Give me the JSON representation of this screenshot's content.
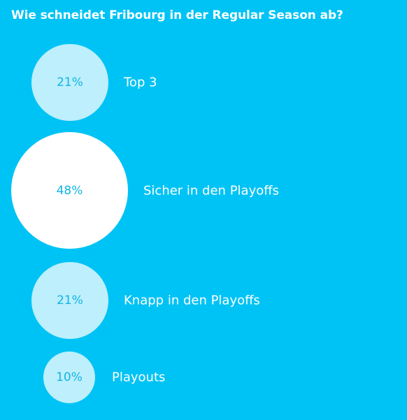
{
  "poll": {
    "question": "Wie schneidet Fribourg in der Regular Season ab?",
    "options": [
      {
        "percent": "21%",
        "label": "Top 3",
        "value": 21
      },
      {
        "percent": "48%",
        "label": "Sicher in den Playoffs",
        "value": 48
      },
      {
        "percent": "21%",
        "label": "Knapp in den Playoffs",
        "value": 21
      },
      {
        "percent": "10%",
        "label": "Playouts",
        "value": 10
      }
    ]
  },
  "colors": {
    "background": "#00c3f5",
    "bubble": "#bdeffc",
    "bubble_leader": "#ffffff",
    "percent_text": "#13b5e4",
    "text": "#ffffff"
  }
}
